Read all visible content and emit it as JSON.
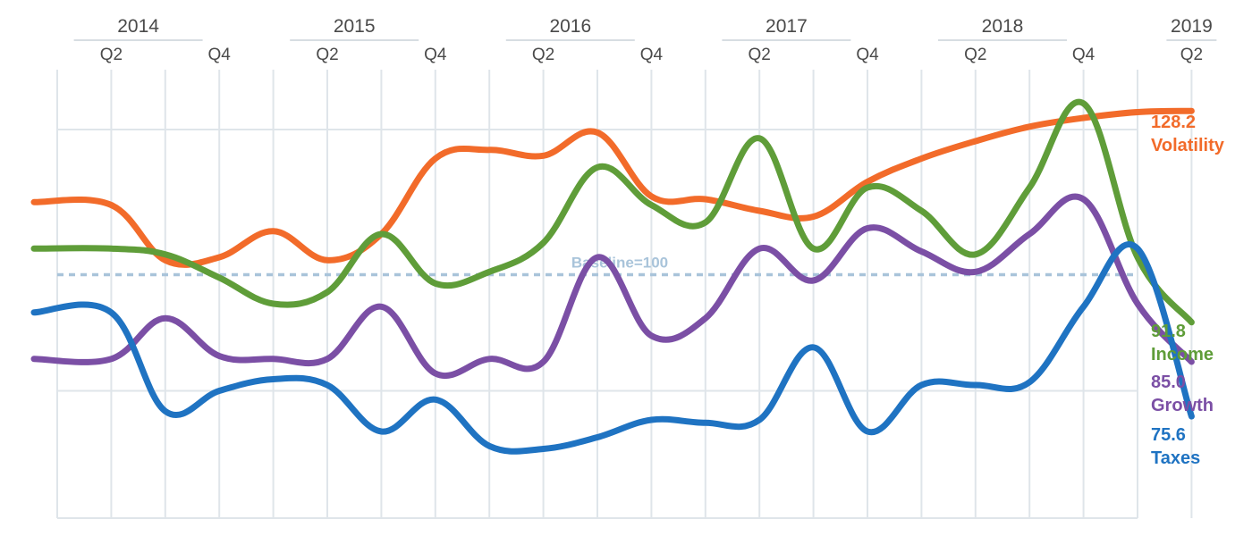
{
  "chart_data": {
    "type": "line",
    "x_quarters": [
      "2014 Q1",
      "2014 Q2",
      "2014 Q3",
      "2014 Q4",
      "2015 Q1",
      "2015 Q2",
      "2015 Q3",
      "2015 Q4",
      "2016 Q1",
      "2016 Q2",
      "2016 Q3",
      "2016 Q4",
      "2017 Q1",
      "2017 Q2",
      "2017 Q3",
      "2017 Q4",
      "2018 Q1",
      "2018 Q2",
      "2018 Q3",
      "2018 Q4",
      "2019 Q1",
      "2019 Q2"
    ],
    "years": [
      {
        "label": "2014",
        "quarter_index": 1.5
      },
      {
        "label": "2015",
        "quarter_index": 5.5
      },
      {
        "label": "2016",
        "quarter_index": 9.5
      },
      {
        "label": "2017",
        "quarter_index": 13.5
      },
      {
        "label": "2018",
        "quarter_index": 17.5
      },
      {
        "label": "2019",
        "quarter_index": 21
      }
    ],
    "quarter_ticks": [
      {
        "label": "Q2",
        "quarter_index": 1
      },
      {
        "label": "Q4",
        "quarter_index": 3
      },
      {
        "label": "Q2",
        "quarter_index": 5
      },
      {
        "label": "Q4",
        "quarter_index": 7
      },
      {
        "label": "Q2",
        "quarter_index": 9
      },
      {
        "label": "Q4",
        "quarter_index": 11
      },
      {
        "label": "Q2",
        "quarter_index": 13
      },
      {
        "label": "Q4",
        "quarter_index": 15
      },
      {
        "label": "Q2",
        "quarter_index": 17
      },
      {
        "label": "Q4",
        "quarter_index": 19
      },
      {
        "label": "Q2",
        "quarter_index": 21
      }
    ],
    "ylim": [
      55,
      145
    ],
    "horizontal_grid_values": [
      125,
      80
    ],
    "grid": true,
    "baseline": {
      "value": 100,
      "label": "Baseline=100",
      "color": "#a9c4da"
    },
    "series": [
      {
        "name": "Volatility",
        "end_label": "128.2",
        "color": "#f26b2a",
        "values": [
          112.5,
          112,
          102.5,
          103,
          107.5,
          102.5,
          107,
          120,
          121.5,
          120.5,
          124.5,
          113.5,
          113,
          111,
          110,
          116,
          120,
          123,
          125.5,
          127,
          128,
          128.2
        ]
      },
      {
        "name": "Income",
        "end_label": "91.8",
        "color": "#5f9d39",
        "values": [
          104.5,
          104.5,
          103.5,
          99.5,
          95,
          97,
          107,
          98.5,
          100.5,
          105.5,
          118.5,
          112,
          109,
          123.5,
          104.5,
          115,
          111,
          103.5,
          115,
          129.5,
          103,
          91.8
        ]
      },
      {
        "name": "Growth",
        "end_label": "85.0",
        "color": "#7b4fa5",
        "values": [
          85.5,
          85.5,
          92.5,
          86,
          85.5,
          85.5,
          94.5,
          83,
          85.5,
          85,
          103,
          89.5,
          92.5,
          104.5,
          99,
          108,
          104,
          100.5,
          107,
          113,
          95,
          85.0
        ]
      },
      {
        "name": "Taxes",
        "end_label": "75.6",
        "color": "#1f73c2",
        "values": [
          93.5,
          93.5,
          76.5,
          80,
          82,
          81,
          73,
          78.5,
          70.5,
          70,
          72,
          75,
          74.5,
          75,
          87.5,
          73,
          81,
          81,
          81.5,
          94.5,
          104.5,
          75.6
        ]
      }
    ]
  }
}
